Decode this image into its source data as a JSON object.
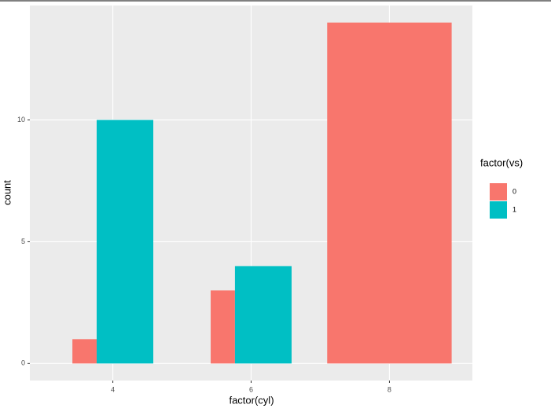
{
  "chart_data": {
    "type": "bar",
    "x_label": "factor(cyl)",
    "y_label": "count",
    "categories": [
      "4",
      "6",
      "8"
    ],
    "legend_title": "factor(vs)",
    "series": [
      {
        "name": "0",
        "color": "#f8766d",
        "values": [
          1,
          3,
          14
        ]
      },
      {
        "name": "1",
        "color": "#00bfc4",
        "values": [
          10,
          4,
          null
        ]
      }
    ],
    "ylim": [
      -0.7,
      14.7
    ],
    "yticks": [
      0,
      5,
      10
    ],
    "grid": true,
    "legend": "right"
  }
}
